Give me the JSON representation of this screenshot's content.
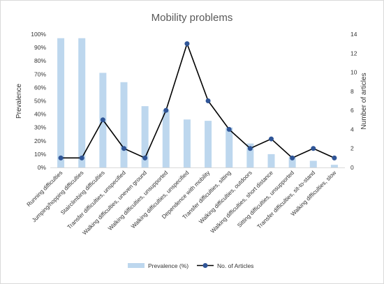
{
  "chart_data": {
    "type": "bar",
    "title": "Mobility problems",
    "categories": [
      "Running difficulties",
      "Jumping/hopping difficulties",
      "Stairclimbing difficulties",
      "Transfer difficulties, unspecified",
      "Walking difficulties, uneven ground",
      "Walking difficulties, unsupported",
      "Walking difficulties, unspecified",
      "Dependence with mobility",
      "Transfer difficulties, sitting",
      "Walking difficulties, outdoors",
      "Walking difficulties, short distance",
      "Sitting difficulties, unsupported",
      "Transfer difficulties, sit-to-stand",
      "Walking difficulties, slow"
    ],
    "series": [
      {
        "name": "Prevalence (%)",
        "type": "bar",
        "axis": "left",
        "color": "#bdd7ee",
        "values": [
          97,
          97,
          71,
          64,
          46,
          43,
          36,
          35,
          30,
          18,
          10,
          8,
          5,
          2
        ]
      },
      {
        "name": "No. of Articles",
        "type": "line",
        "axis": "right",
        "color": "#000000",
        "marker_color": "#2f5597",
        "values": [
          1,
          1,
          5,
          2,
          1,
          6,
          13,
          7,
          4,
          2,
          3,
          1,
          2,
          1
        ]
      }
    ],
    "ylabel": "Prevalence",
    "y2label": "Number of articles",
    "ylim": [
      0,
      100
    ],
    "y2lim": [
      0,
      14
    ],
    "yticks": [
      "0%",
      "10%",
      "20%",
      "30%",
      "40%",
      "50%",
      "60%",
      "70%",
      "80%",
      "90%",
      "100%"
    ],
    "y2ticks": [
      "0",
      "2",
      "4",
      "6",
      "8",
      "10",
      "12",
      "14"
    ],
    "legend_position": "bottom",
    "grid": false
  }
}
